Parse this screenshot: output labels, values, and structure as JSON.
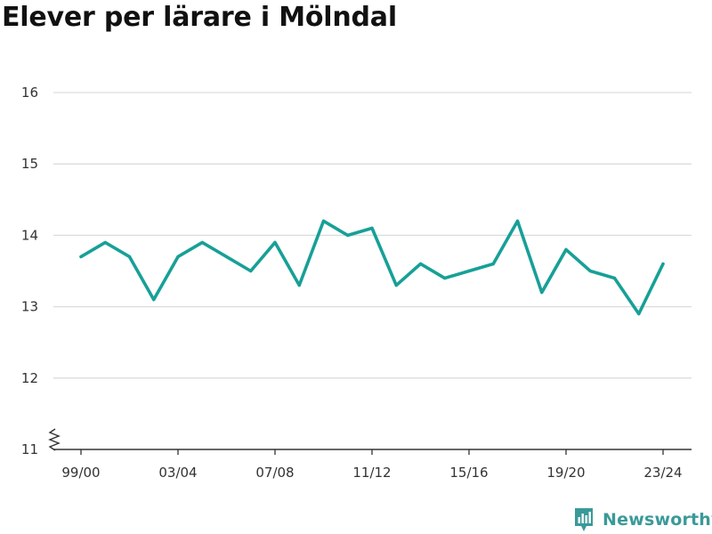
{
  "brand": {
    "name": "Newsworthy",
    "icon": "newsworthy-logo-icon",
    "color": "#3a9a99"
  },
  "chart_data": {
    "type": "line",
    "title": "Elever per lärare i Mölndal",
    "xlabel": "",
    "ylabel": "",
    "x": [
      "99/00",
      "00/01",
      "01/02",
      "02/03",
      "03/04",
      "04/05",
      "05/06",
      "06/07",
      "07/08",
      "08/09",
      "09/10",
      "10/11",
      "11/12",
      "12/13",
      "13/14",
      "14/15",
      "15/16",
      "16/17",
      "17/18",
      "18/19",
      "19/20",
      "20/21",
      "21/22",
      "22/23",
      "23/24"
    ],
    "xtick_labels": [
      "99/00",
      "03/04",
      "07/08",
      "11/12",
      "15/16",
      "19/20",
      "23/24"
    ],
    "series": [
      {
        "name": "",
        "color": "#17a097",
        "values": [
          13.7,
          13.9,
          13.7,
          13.1,
          13.7,
          13.9,
          13.7,
          13.5,
          13.9,
          13.3,
          14.2,
          14.0,
          14.1,
          13.3,
          13.6,
          13.4,
          13.5,
          13.6,
          14.2,
          13.2,
          13.8,
          13.5,
          13.4,
          12.9,
          13.6
        ]
      }
    ],
    "ylim": [
      11,
      16
    ],
    "yticks": [
      11,
      12,
      13,
      14,
      15,
      16
    ],
    "ytick_labels": [
      "11",
      "12",
      "13",
      "14",
      "15",
      "16"
    ],
    "axis_break": true,
    "grid": true
  }
}
